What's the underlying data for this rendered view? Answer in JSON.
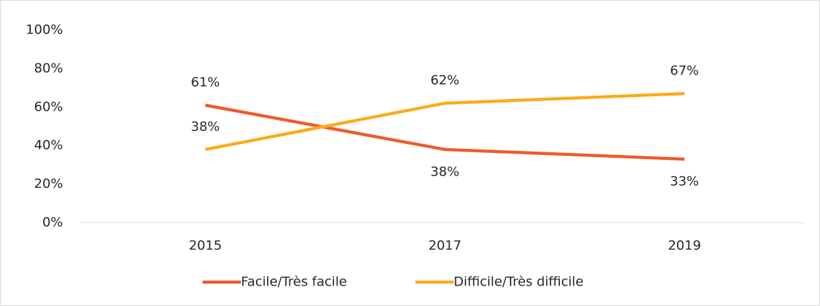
{
  "chart_data": {
    "type": "line",
    "categories": [
      "2015",
      "2017",
      "2019"
    ],
    "series": [
      {
        "name": "Facile/Très facile",
        "color": "#ee5a2a",
        "values": [
          61,
          38,
          33
        ],
        "value_labels": [
          "61%",
          "38%",
          "33%"
        ]
      },
      {
        "name": "Difficile/Très difficile",
        "color": "#fbab18",
        "values": [
          38,
          62,
          67
        ],
        "value_labels": [
          "38%",
          "62%",
          "67%"
        ]
      }
    ],
    "ylim": [
      0,
      100
    ],
    "yticks": [
      {
        "value": 0,
        "label": "0%"
      },
      {
        "value": 20,
        "label": "20%"
      },
      {
        "value": 40,
        "label": "40%"
      },
      {
        "value": 60,
        "label": "60%"
      },
      {
        "value": 80,
        "label": "80%"
      },
      {
        "value": 100,
        "label": "100%"
      }
    ],
    "grid": false,
    "legend": "bottom"
  }
}
